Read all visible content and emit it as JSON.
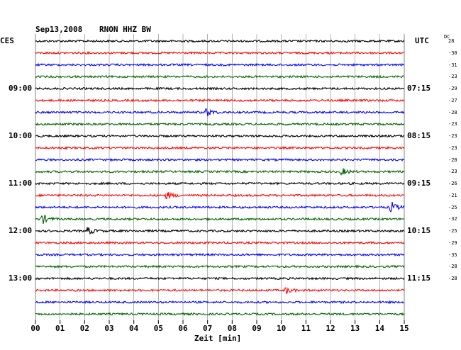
{
  "header": {
    "date": "Sep13,2008",
    "station": "RNON HHZ BW",
    "left_zone": "CES",
    "right_zone": "UTC",
    "dc_label": "DC"
  },
  "footer": {
    "xlabel": "Zeit [min]"
  },
  "colors": {
    "black": "#000000",
    "red": "#ff0000",
    "blue": "#0000ff",
    "green": "#006400",
    "grid": "#808080"
  },
  "chart_data": {
    "type": "line",
    "title": "Sep13,2008 RNON HHZ BW",
    "xlabel": "Zeit [min]",
    "xlim": [
      0,
      15
    ],
    "x_ticks": [
      "00",
      "01",
      "02",
      "03",
      "04",
      "05",
      "06",
      "07",
      "08",
      "09",
      "10",
      "11",
      "12",
      "13",
      "14",
      "15"
    ],
    "trace_colors": [
      "black",
      "red",
      "blue",
      "green"
    ],
    "left_time_labels": [
      {
        "row": 4,
        "label": "09:00"
      },
      {
        "row": 8,
        "label": "10:00"
      },
      {
        "row": 12,
        "label": "11:00"
      },
      {
        "row": 16,
        "label": "12:00"
      },
      {
        "row": 20,
        "label": "13:00"
      }
    ],
    "right_time_labels": [
      {
        "row": 4,
        "label": "07:15"
      },
      {
        "row": 8,
        "label": "08:15"
      },
      {
        "row": 12,
        "label": "09:15"
      },
      {
        "row": 16,
        "label": "10:15"
      },
      {
        "row": 20,
        "label": "11:15"
      }
    ],
    "dc_offsets": [
      "28",
      "-30",
      "-31",
      "-23",
      "-29",
      "-27",
      "-28",
      "-23",
      "-23",
      "-23",
      "-20",
      "-23",
      "-26",
      "-21",
      "-25",
      "-32",
      "-25",
      "-29",
      "-35",
      "-28",
      "-28"
    ],
    "events": [
      {
        "row": 6,
        "x_min": 7.0,
        "strength": 1.0
      },
      {
        "row": 11,
        "x_min": 12.5,
        "strength": 0.8
      },
      {
        "row": 13,
        "x_min": 5.4,
        "strength": 0.8
      },
      {
        "row": 14,
        "x_min": 14.5,
        "strength": 1.3
      },
      {
        "row": 15,
        "x_min": 0.3,
        "strength": 1.2
      },
      {
        "row": 16,
        "x_min": 2.2,
        "strength": 0.8
      },
      {
        "row": 21,
        "x_min": 10.2,
        "strength": 0.8
      }
    ]
  }
}
